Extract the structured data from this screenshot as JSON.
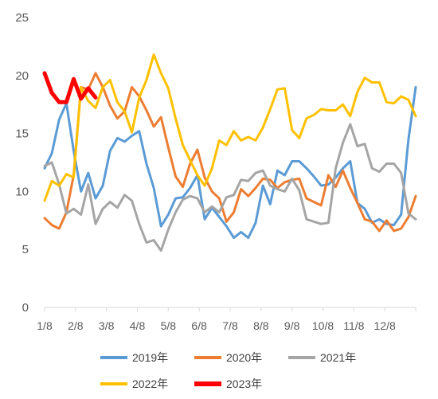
{
  "chart_data": {
    "type": "line",
    "title": "",
    "xlabel": "",
    "ylabel": "",
    "ylim": [
      0,
      25
    ],
    "yticks": [
      0,
      5,
      10,
      15,
      20,
      25
    ],
    "x_tick_labels": [
      "1/8",
      "2/8",
      "3/8",
      "4/8",
      "5/8",
      "6/8",
      "7/8",
      "8/8",
      "9/8",
      "10/8",
      "11/8",
      "12/8"
    ],
    "x_domain_weeks": [
      0,
      51
    ],
    "grid": false,
    "legend_position": "bottom",
    "series": [
      {
        "name": "2019年",
        "color": "#5B9BD5",
        "width": 3,
        "values": [
          12.0,
          13.3,
          16.2,
          17.6,
          13.5,
          10.0,
          11.6,
          9.4,
          10.5,
          13.5,
          14.6,
          14.3,
          14.8,
          15.2,
          12.4,
          10.3,
          7.0,
          8.0,
          9.4,
          9.5,
          10.3,
          11.4,
          7.6,
          8.6,
          7.8,
          7.0,
          6.0,
          6.5,
          6.0,
          7.3,
          10.5,
          8.9,
          11.8,
          11.4,
          12.6,
          12.6,
          12.0,
          11.3,
          10.5,
          10.6,
          11.2,
          12.0,
          12.6,
          9.0,
          8.5,
          7.3,
          7.6,
          7.2,
          7.1,
          8.0,
          14.5,
          19.0
        ]
      },
      {
        "name": "2020年",
        "color": "#ED7D31",
        "width": 3,
        "values": [
          7.7,
          7.1,
          6.8,
          8.2,
          11.4,
          19.0,
          18.8,
          20.2,
          19.0,
          17.4,
          16.3,
          16.9,
          19.0,
          18.2,
          17.0,
          15.6,
          16.4,
          13.8,
          11.3,
          10.4,
          12.4,
          13.6,
          11.2,
          10.0,
          9.4,
          7.4,
          8.2,
          10.2,
          9.6,
          10.3,
          11.1,
          11.0,
          10.3,
          10.8,
          11.0,
          11.1,
          9.4,
          9.1,
          8.8,
          11.4,
          10.4,
          11.8,
          10.3,
          9.0,
          7.6,
          7.4,
          6.6,
          7.5,
          6.6,
          6.8,
          7.8,
          9.6
        ]
      },
      {
        "name": "2021年",
        "color": "#A5A5A5",
        "width": 3,
        "values": [
          12.2,
          12.5,
          10.6,
          8.1,
          8.5,
          8.0,
          10.6,
          7.2,
          8.5,
          9.1,
          8.6,
          9.7,
          9.2,
          7.2,
          5.6,
          5.8,
          4.9,
          6.7,
          8.2,
          9.3,
          9.6,
          9.4,
          8.2,
          8.7,
          8.2,
          9.5,
          9.7,
          11.0,
          10.9,
          11.6,
          11.8,
          10.5,
          10.2,
          10.0,
          11.1,
          10.1,
          7.6,
          7.4,
          7.2,
          7.3,
          12.0,
          14.2,
          15.8,
          13.9,
          14.1,
          12.0,
          11.7,
          12.4,
          12.4,
          11.6,
          8.1,
          7.6
        ]
      },
      {
        "name": "2022年",
        "color": "#FFC000",
        "width": 3,
        "values": [
          9.2,
          10.9,
          10.5,
          11.5,
          11.2,
          19.0,
          17.8,
          17.2,
          19.0,
          19.6,
          17.7,
          16.9,
          15.1,
          18.1,
          19.6,
          21.8,
          20.2,
          18.9,
          16.3,
          14.0,
          12.7,
          11.4,
          10.5,
          12.0,
          14.4,
          14.0,
          15.2,
          14.4,
          14.7,
          14.4,
          15.5,
          17.1,
          18.8,
          18.9,
          15.3,
          14.6,
          16.3,
          16.6,
          17.1,
          17.0,
          17.0,
          17.5,
          16.5,
          18.6,
          19.8,
          19.4,
          19.4,
          17.7,
          17.6,
          18.2,
          17.9,
          16.5
        ]
      },
      {
        "name": "2023年",
        "color": "#FF0000",
        "width": 5,
        "values": [
          20.2,
          18.5,
          17.7,
          17.7,
          19.7,
          18.0,
          18.9,
          18.1
        ]
      }
    ]
  }
}
